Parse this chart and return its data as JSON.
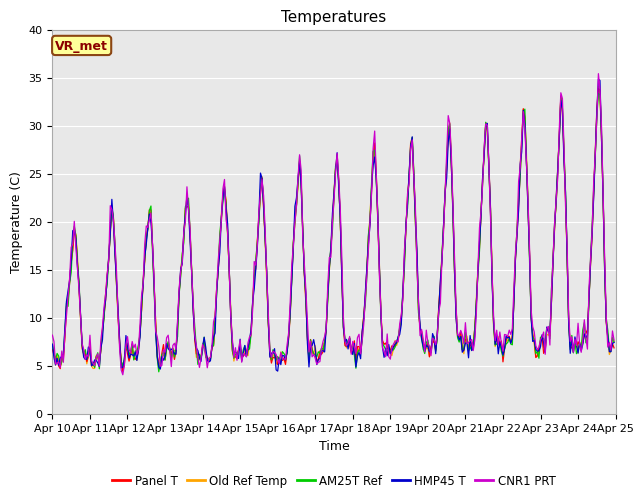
{
  "title": "Temperatures",
  "xlabel": "Time",
  "ylabel": "Temperature (C)",
  "ylim": [
    0,
    40
  ],
  "xlim_start": 0,
  "xlim_end": 360,
  "background_color": "#e8e8e8",
  "fig_bg": "#ffffff",
  "series_colors": {
    "Panel T": "#ff0000",
    "Old Ref Temp": "#ffa500",
    "AM25T Ref": "#00cc00",
    "HMP45 T": "#0000cc",
    "CNR1 PRT": "#cc00cc"
  },
  "xtick_labels": [
    "Apr 10",
    "Apr 11",
    "Apr 12",
    "Apr 13",
    "Apr 14",
    "Apr 15",
    "Apr 16",
    "Apr 17",
    "Apr 18",
    "Apr 19",
    "Apr 20",
    "Apr 21",
    "Apr 22",
    "Apr 23",
    "Apr 24",
    "Apr 25"
  ],
  "xtick_positions": [
    0,
    24,
    48,
    72,
    96,
    120,
    144,
    168,
    192,
    216,
    240,
    264,
    288,
    312,
    336,
    360
  ],
  "ytick_values": [
    0,
    5,
    10,
    15,
    20,
    25,
    30,
    35,
    40
  ],
  "annotation_text": "VR_met",
  "annotation_bg": "#ffff99",
  "annotation_edge": "#8b4513",
  "grid_color": "#ffffff",
  "title_fontsize": 11,
  "label_fontsize": 9,
  "tick_fontsize": 8
}
